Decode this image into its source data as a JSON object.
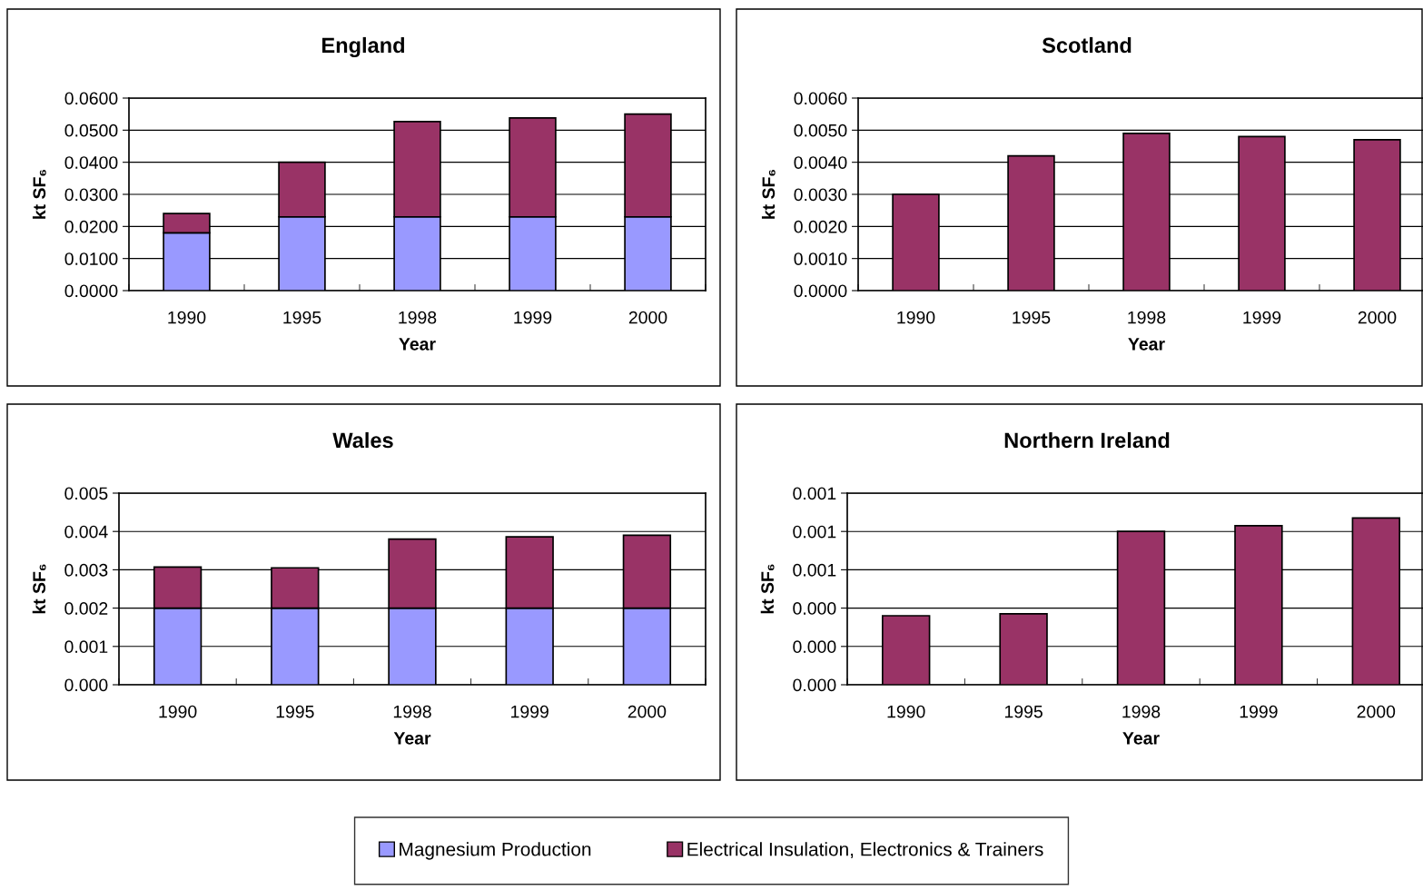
{
  "chart_data": [
    {
      "type": "bar",
      "title": "England",
      "xlabel": "Year",
      "ylabel": "kt SF₆",
      "categories": [
        "1990",
        "1995",
        "1998",
        "1999",
        "2000"
      ],
      "stacked": true,
      "grid": "y",
      "legend": "bottom",
      "ylim": [
        0,
        0.06
      ],
      "yticks": [
        {
          "value": 0,
          "label": "0.0000"
        },
        {
          "value": 0.01,
          "label": "0.0100"
        },
        {
          "value": 0.02,
          "label": "0.0200"
        },
        {
          "value": 0.03,
          "label": "0.0300"
        },
        {
          "value": 0.04,
          "label": "0.0400"
        },
        {
          "value": 0.05,
          "label": "0.0500"
        },
        {
          "value": 0.06,
          "label": "0.0600"
        }
      ],
      "series": [
        {
          "name": "Magnesium Production",
          "color": "#9999ff",
          "values": [
            0.018,
            0.023,
            0.023,
            0.023,
            0.023
          ]
        },
        {
          "name": "Electrical Insulation, Electronics & Trainers",
          "color": "#993366",
          "values": [
            0.006,
            0.017,
            0.0297,
            0.0308,
            0.032
          ]
        }
      ]
    },
    {
      "type": "bar",
      "title": "Scotland",
      "xlabel": "Year",
      "ylabel": "kt SF₆",
      "categories": [
        "1990",
        "1995",
        "1998",
        "1999",
        "2000"
      ],
      "stacked": true,
      "grid": "y",
      "ylim": [
        0,
        0.006
      ],
      "yticks": [
        {
          "value": 0,
          "label": "0.0000"
        },
        {
          "value": 0.001,
          "label": "0.0010"
        },
        {
          "value": 0.002,
          "label": "0.0020"
        },
        {
          "value": 0.003,
          "label": "0.0030"
        },
        {
          "value": 0.004,
          "label": "0.0040"
        },
        {
          "value": 0.005,
          "label": "0.0050"
        },
        {
          "value": 0.006,
          "label": "0.0060"
        }
      ],
      "series": [
        {
          "color": "#993366",
          "values": [
            0.003,
            0.0042,
            0.0049,
            0.0048,
            0.0047
          ]
        }
      ]
    },
    {
      "type": "bar",
      "title": "Wales",
      "xlabel": "Year",
      "ylabel": "kt SF₆",
      "categories": [
        "1990",
        "1995",
        "1998",
        "1999",
        "2000"
      ],
      "stacked": true,
      "grid": "y",
      "ylim": [
        0,
        0.005
      ],
      "yticks": [
        {
          "value": 0,
          "label": "0.000"
        },
        0.001,
        0.002,
        0.003,
        0.004,
        0.005
      ],
      "series": [
        {
          "color": "#9999ff",
          "values": [
            0.002,
            0.002,
            0.002,
            0.002,
            0.002
          ]
        },
        {
          "color": "#993366",
          "values": [
            0.00107,
            0.00105,
            0.0018,
            0.00186,
            0.0019
          ]
        }
      ]
    },
    {
      "type": "bar",
      "title": "Northern Ireland",
      "xlabel": "Year",
      "ylabel": "kt SF₆",
      "categories": [
        "1990",
        "1995",
        "1998",
        "1999",
        "2000"
      ],
      "stacked": true,
      "grid": "y",
      "ylim": [
        0,
        0.001
      ],
      "yticks": [
        {
          "value": 0,
          "label": "0.000"
        },
        {
          "value": 0.0002,
          "label": "0.000"
        },
        {
          "value": 0.0004,
          "label": "0.000"
        },
        {
          "value": 0.0006,
          "label": "0.001"
        },
        {
          "value": 0.0008,
          "label": "0.001"
        },
        0.001
      ],
      "series": [
        {
          "color": "#993366",
          "values": [
            0.00036,
            0.00037,
            0.0008,
            0.00083,
            0.00087
          ]
        }
      ]
    }
  ]
}
